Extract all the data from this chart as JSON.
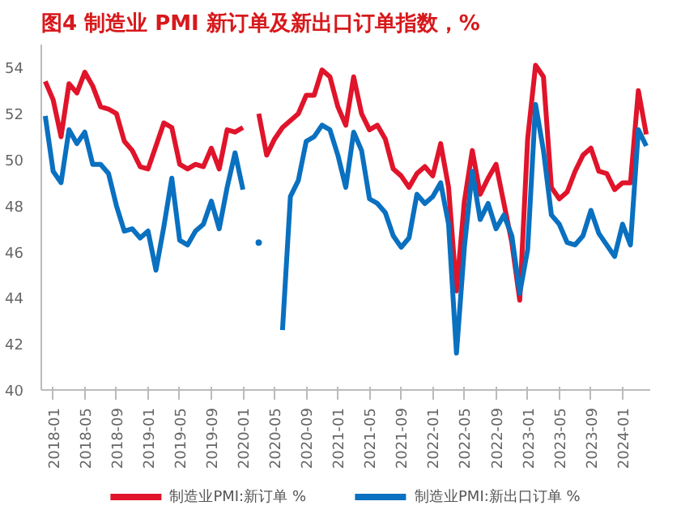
{
  "chart_data": {
    "type": "line",
    "title": "图4  制造业 PMI 新订单及新出口订单指数，%",
    "categories": [
      null,
      "2018-01",
      null,
      null,
      null,
      "2018-05",
      null,
      null,
      null,
      "2018-09",
      null,
      null,
      null,
      "2019-01",
      null,
      null,
      null,
      "2019-05",
      null,
      null,
      null,
      "2019-09",
      null,
      null,
      null,
      "2020-01",
      null,
      null,
      null,
      "2020-05",
      null,
      null,
      null,
      "2020-09",
      null,
      null,
      null,
      "2021-01",
      null,
      null,
      null,
      "2021-05",
      null,
      null,
      null,
      "2021-09",
      null,
      null,
      null,
      "2022-01",
      null,
      null,
      null,
      "2022-05",
      null,
      null,
      null,
      "2022-09",
      null,
      null,
      null,
      "2023-01",
      null,
      null,
      null,
      "2023-05",
      null,
      null,
      null,
      "2023-09",
      null,
      null,
      null,
      "2024-01",
      null,
      null,
      null
    ],
    "series": [
      {
        "name": "制造业PMI:新订单 %",
        "color": "#e0142a",
        "values": [
          53.4,
          52.6,
          51.0,
          53.3,
          52.9,
          53.8,
          53.2,
          52.3,
          52.2,
          52.0,
          50.8,
          50.4,
          49.7,
          49.6,
          50.6,
          51.6,
          51.4,
          49.8,
          49.6,
          49.8,
          49.7,
          50.5,
          49.6,
          51.3,
          51.2,
          51.4,
          null,
          52.0,
          50.2,
          50.9,
          51.4,
          51.7,
          52.0,
          52.8,
          52.8,
          53.9,
          53.6,
          52.3,
          51.5,
          53.6,
          52.0,
          51.3,
          51.5,
          50.9,
          49.6,
          49.3,
          48.8,
          49.4,
          49.7,
          49.3,
          50.7,
          48.8,
          44.3,
          48.2,
          50.4,
          48.5,
          49.2,
          49.8,
          48.1,
          46.4,
          43.9,
          50.9,
          54.1,
          53.6,
          48.8,
          48.3,
          48.6,
          49.5,
          50.2,
          50.5,
          49.5,
          49.4,
          48.7,
          49.0,
          49.0,
          53.0,
          51.1
        ]
      },
      {
        "name": "制造业PMI:新出口订单 %",
        "color": "#0a70c0",
        "values": [
          51.9,
          49.5,
          49.0,
          51.3,
          50.7,
          51.2,
          49.8,
          49.8,
          49.4,
          48.0,
          46.9,
          47.0,
          46.6,
          46.9,
          45.2,
          47.1,
          49.2,
          46.5,
          46.3,
          46.9,
          47.2,
          48.2,
          47.0,
          48.8,
          50.3,
          48.7,
          null,
          46.4,
          null,
          null,
          42.6,
          48.4,
          49.1,
          50.8,
          51.0,
          51.5,
          51.3,
          50.2,
          48.8,
          51.2,
          50.4,
          48.3,
          48.1,
          47.7,
          46.7,
          46.2,
          46.6,
          48.5,
          48.1,
          48.4,
          49.0,
          47.2,
          41.6,
          46.2,
          49.5,
          47.4,
          48.1,
          47.0,
          47.6,
          46.7,
          44.2,
          46.1,
          52.4,
          50.4,
          47.6,
          47.2,
          46.4,
          46.3,
          46.7,
          47.8,
          46.8,
          46.3,
          45.8,
          47.2,
          46.3,
          51.3,
          50.6
        ]
      }
    ],
    "ylim": [
      40,
      55
    ],
    "yticks": [
      40,
      42,
      44,
      46,
      48,
      50,
      52,
      54
    ],
    "grid": false,
    "legend": "bottom",
    "marker": "none",
    "line_style": "solid"
  }
}
